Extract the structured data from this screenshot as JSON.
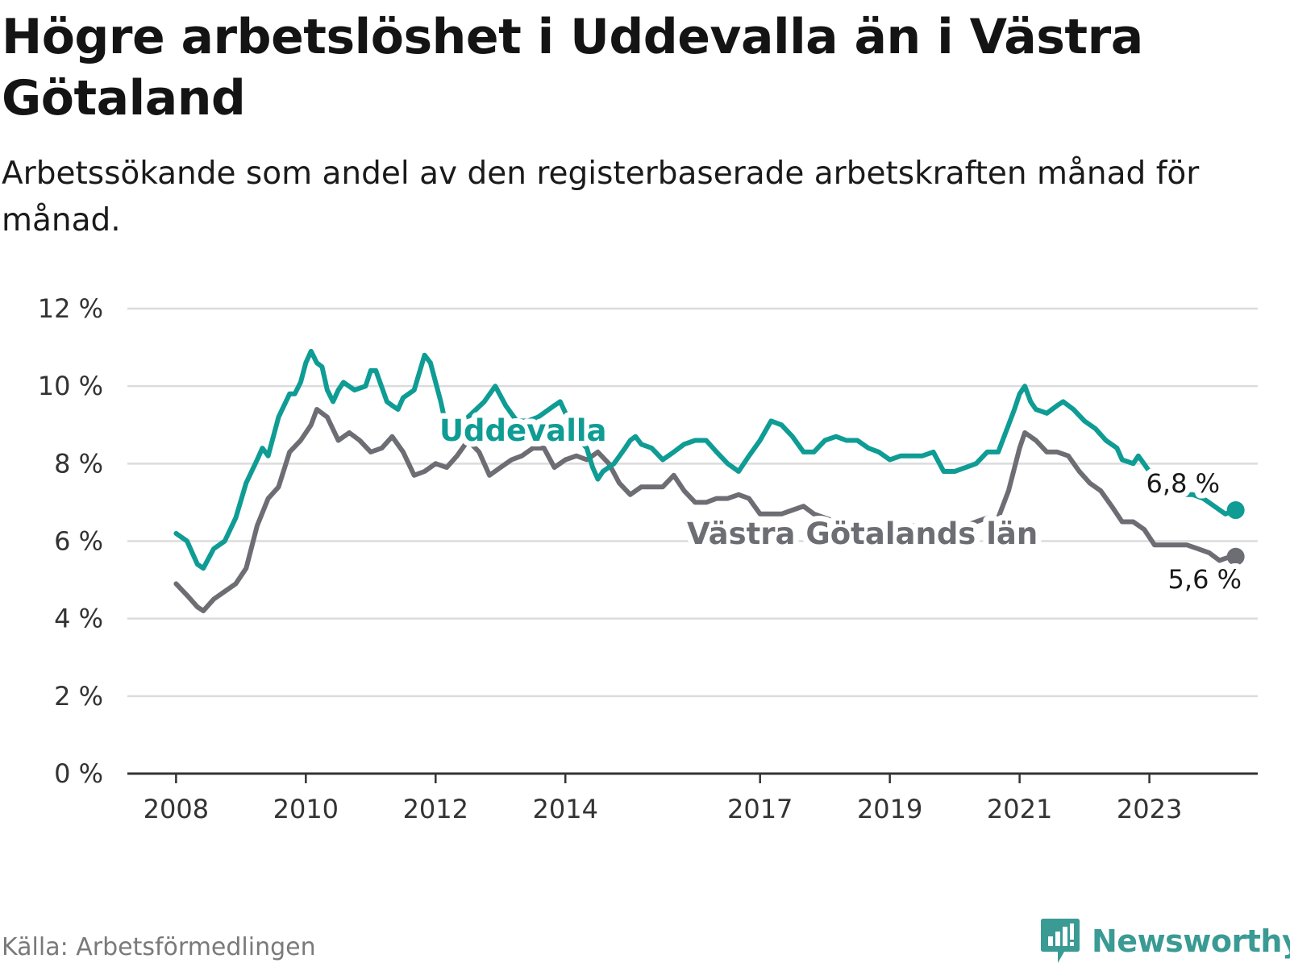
{
  "title": "Högre arbetslöshet i Uddevalla än i Västra Götaland",
  "subtitle": "Arbetssökande som andel av den registerbaserade arbetskraften månad för månad.",
  "source": "Källa: Arbetsförmedlingen",
  "brand": "Newsworthy",
  "colors": {
    "uddevalla": "#0e9c94",
    "vg": "#6d6d74",
    "grid": "#dcdcdc",
    "axis": "#333333"
  },
  "chart_data": {
    "type": "line",
    "title": "Högre arbetslöshet i Uddevalla än i Västra Götaland",
    "xlabel": "",
    "ylabel": "",
    "ylim": [
      0,
      12
    ],
    "xlim": [
      2007.25,
      2024.67
    ],
    "yticks": [
      0,
      2,
      4,
      6,
      8,
      10,
      12
    ],
    "ytick_labels": [
      "0 %",
      "2 %",
      "4 %",
      "6 %",
      "8 %",
      "10 %",
      "12 %"
    ],
    "xtick_labels": [
      "2008",
      "2010",
      "2012",
      "2014",
      "2017",
      "2019",
      "2021",
      "2023"
    ],
    "series": [
      {
        "name": "Uddevalla",
        "label": "Uddevalla",
        "end_label": "6,8 %",
        "points": [
          [
            2008.0,
            6.2
          ],
          [
            2008.17,
            6.0
          ],
          [
            2008.33,
            5.4
          ],
          [
            2008.42,
            5.3
          ],
          [
            2008.58,
            5.8
          ],
          [
            2008.75,
            6.0
          ],
          [
            2008.92,
            6.6
          ],
          [
            2009.08,
            7.5
          ],
          [
            2009.25,
            8.1
          ],
          [
            2009.33,
            8.4
          ],
          [
            2009.42,
            8.2
          ],
          [
            2009.58,
            9.2
          ],
          [
            2009.75,
            9.8
          ],
          [
            2009.83,
            9.8
          ],
          [
            2009.92,
            10.1
          ],
          [
            2010.0,
            10.6
          ],
          [
            2010.08,
            10.9
          ],
          [
            2010.17,
            10.6
          ],
          [
            2010.25,
            10.5
          ],
          [
            2010.33,
            9.9
          ],
          [
            2010.42,
            9.6
          ],
          [
            2010.5,
            9.9
          ],
          [
            2010.58,
            10.1
          ],
          [
            2010.75,
            9.9
          ],
          [
            2010.92,
            10.0
          ],
          [
            2011.0,
            10.4
          ],
          [
            2011.08,
            10.4
          ],
          [
            2011.25,
            9.6
          ],
          [
            2011.33,
            9.5
          ],
          [
            2011.42,
            9.4
          ],
          [
            2011.5,
            9.7
          ],
          [
            2011.67,
            9.9
          ],
          [
            2011.83,
            10.8
          ],
          [
            2011.92,
            10.6
          ],
          [
            2012.08,
            9.6
          ],
          [
            2012.17,
            8.9
          ],
          [
            2012.25,
            8.7
          ],
          [
            2012.5,
            9.2
          ],
          [
            2012.75,
            9.6
          ],
          [
            2012.92,
            10.0
          ],
          [
            2013.08,
            9.5
          ],
          [
            2013.25,
            9.1
          ],
          [
            2013.42,
            9.1
          ],
          [
            2013.58,
            9.2
          ],
          [
            2013.83,
            9.5
          ],
          [
            2013.92,
            9.6
          ],
          [
            2014.17,
            8.7
          ],
          [
            2014.33,
            8.4
          ],
          [
            2014.42,
            7.9
          ],
          [
            2014.5,
            7.6
          ],
          [
            2014.58,
            7.8
          ],
          [
            2014.75,
            8.0
          ],
          [
            2014.92,
            8.4
          ],
          [
            2015.0,
            8.6
          ],
          [
            2015.08,
            8.7
          ],
          [
            2015.17,
            8.5
          ],
          [
            2015.33,
            8.4
          ],
          [
            2015.5,
            8.1
          ],
          [
            2015.67,
            8.3
          ],
          [
            2015.83,
            8.5
          ],
          [
            2016.0,
            8.6
          ],
          [
            2016.17,
            8.6
          ],
          [
            2016.33,
            8.3
          ],
          [
            2016.5,
            8.0
          ],
          [
            2016.67,
            7.8
          ],
          [
            2016.83,
            8.2
          ],
          [
            2017.0,
            8.6
          ],
          [
            2017.17,
            9.1
          ],
          [
            2017.33,
            9.0
          ],
          [
            2017.5,
            8.7
          ],
          [
            2017.67,
            8.3
          ],
          [
            2017.83,
            8.3
          ],
          [
            2018.0,
            8.6
          ],
          [
            2018.17,
            8.7
          ],
          [
            2018.33,
            8.6
          ],
          [
            2018.5,
            8.6
          ],
          [
            2018.67,
            8.4
          ],
          [
            2018.83,
            8.3
          ],
          [
            2019.0,
            8.1
          ],
          [
            2019.17,
            8.2
          ],
          [
            2019.33,
            8.2
          ],
          [
            2019.5,
            8.2
          ],
          [
            2019.67,
            8.3
          ],
          [
            2019.83,
            7.8
          ],
          [
            2020.0,
            7.8
          ],
          [
            2020.17,
            7.9
          ],
          [
            2020.33,
            8.0
          ],
          [
            2020.5,
            8.3
          ],
          [
            2020.67,
            8.3
          ],
          [
            2020.83,
            9.0
          ],
          [
            2020.92,
            9.4
          ],
          [
            2021.0,
            9.8
          ],
          [
            2021.08,
            10.0
          ],
          [
            2021.17,
            9.6
          ],
          [
            2021.25,
            9.4
          ],
          [
            2021.42,
            9.3
          ],
          [
            2021.58,
            9.5
          ],
          [
            2021.67,
            9.6
          ],
          [
            2021.83,
            9.4
          ],
          [
            2022.0,
            9.1
          ],
          [
            2022.17,
            8.9
          ],
          [
            2022.33,
            8.6
          ],
          [
            2022.5,
            8.4
          ],
          [
            2022.58,
            8.1
          ],
          [
            2022.75,
            8.0
          ],
          [
            2022.83,
            8.2
          ],
          [
            2023.0,
            7.8
          ],
          [
            2023.17,
            7.5
          ],
          [
            2023.33,
            7.3
          ],
          [
            2023.5,
            7.2
          ],
          [
            2023.67,
            7.2
          ],
          [
            2023.83,
            7.1
          ],
          [
            2024.0,
            6.9
          ],
          [
            2024.17,
            6.7
          ],
          [
            2024.33,
            6.8
          ]
        ]
      },
      {
        "name": "Västra Götalands län",
        "label": "Västra Götalands län",
        "end_label": "5,6 %",
        "points": [
          [
            2008.0,
            4.9
          ],
          [
            2008.17,
            4.6
          ],
          [
            2008.33,
            4.3
          ],
          [
            2008.42,
            4.2
          ],
          [
            2008.58,
            4.5
          ],
          [
            2008.75,
            4.7
          ],
          [
            2008.92,
            4.9
          ],
          [
            2009.08,
            5.3
          ],
          [
            2009.25,
            6.4
          ],
          [
            2009.42,
            7.1
          ],
          [
            2009.58,
            7.4
          ],
          [
            2009.75,
            8.3
          ],
          [
            2009.92,
            8.6
          ],
          [
            2010.08,
            9.0
          ],
          [
            2010.17,
            9.4
          ],
          [
            2010.33,
            9.2
          ],
          [
            2010.5,
            8.6
          ],
          [
            2010.67,
            8.8
          ],
          [
            2010.83,
            8.6
          ],
          [
            2011.0,
            8.3
          ],
          [
            2011.17,
            8.4
          ],
          [
            2011.33,
            8.7
          ],
          [
            2011.5,
            8.3
          ],
          [
            2011.67,
            7.7
          ],
          [
            2011.83,
            7.8
          ],
          [
            2012.0,
            8.0
          ],
          [
            2012.17,
            7.9
          ],
          [
            2012.33,
            8.2
          ],
          [
            2012.5,
            8.6
          ],
          [
            2012.67,
            8.3
          ],
          [
            2012.83,
            7.7
          ],
          [
            2013.0,
            7.9
          ],
          [
            2013.17,
            8.1
          ],
          [
            2013.33,
            8.2
          ],
          [
            2013.5,
            8.4
          ],
          [
            2013.67,
            8.4
          ],
          [
            2013.83,
            7.9
          ],
          [
            2014.0,
            8.1
          ],
          [
            2014.17,
            8.2
          ],
          [
            2014.33,
            8.1
          ],
          [
            2014.5,
            8.3
          ],
          [
            2014.67,
            8.0
          ],
          [
            2014.83,
            7.5
          ],
          [
            2015.0,
            7.2
          ],
          [
            2015.17,
            7.4
          ],
          [
            2015.33,
            7.4
          ],
          [
            2015.5,
            7.4
          ],
          [
            2015.67,
            7.7
          ],
          [
            2015.83,
            7.3
          ],
          [
            2016.0,
            7.0
          ],
          [
            2016.17,
            7.0
          ],
          [
            2016.33,
            7.1
          ],
          [
            2016.5,
            7.1
          ],
          [
            2016.67,
            7.2
          ],
          [
            2016.83,
            7.1
          ],
          [
            2017.0,
            6.7
          ],
          [
            2017.17,
            6.7
          ],
          [
            2017.33,
            6.7
          ],
          [
            2017.5,
            6.8
          ],
          [
            2017.67,
            6.9
          ],
          [
            2017.83,
            6.7
          ],
          [
            2018.0,
            6.6
          ],
          [
            2018.17,
            6.5
          ],
          [
            2018.33,
            6.5
          ],
          [
            2018.5,
            6.5
          ],
          [
            2018.67,
            6.4
          ],
          [
            2018.83,
            6.4
          ],
          [
            2019.0,
            6.4
          ],
          [
            2019.17,
            6.3
          ],
          [
            2019.33,
            6.4
          ],
          [
            2019.5,
            6.4
          ],
          [
            2019.67,
            6.3
          ],
          [
            2019.83,
            6.3
          ],
          [
            2020.0,
            6.4
          ],
          [
            2020.17,
            6.4
          ],
          [
            2020.33,
            6.5
          ],
          [
            2020.5,
            6.6
          ],
          [
            2020.67,
            6.6
          ],
          [
            2020.83,
            7.3
          ],
          [
            2021.0,
            8.4
          ],
          [
            2021.08,
            8.8
          ],
          [
            2021.25,
            8.6
          ],
          [
            2021.42,
            8.3
          ],
          [
            2021.58,
            8.3
          ],
          [
            2021.75,
            8.2
          ],
          [
            2021.92,
            7.8
          ],
          [
            2022.08,
            7.5
          ],
          [
            2022.25,
            7.3
          ],
          [
            2022.42,
            6.9
          ],
          [
            2022.58,
            6.5
          ],
          [
            2022.75,
            6.5
          ],
          [
            2022.92,
            6.3
          ],
          [
            2023.08,
            5.9
          ],
          [
            2023.25,
            5.9
          ],
          [
            2023.42,
            5.9
          ],
          [
            2023.58,
            5.9
          ],
          [
            2023.75,
            5.8
          ],
          [
            2023.92,
            5.7
          ],
          [
            2024.08,
            5.5
          ],
          [
            2024.25,
            5.6
          ],
          [
            2024.33,
            5.6
          ]
        ]
      }
    ]
  }
}
